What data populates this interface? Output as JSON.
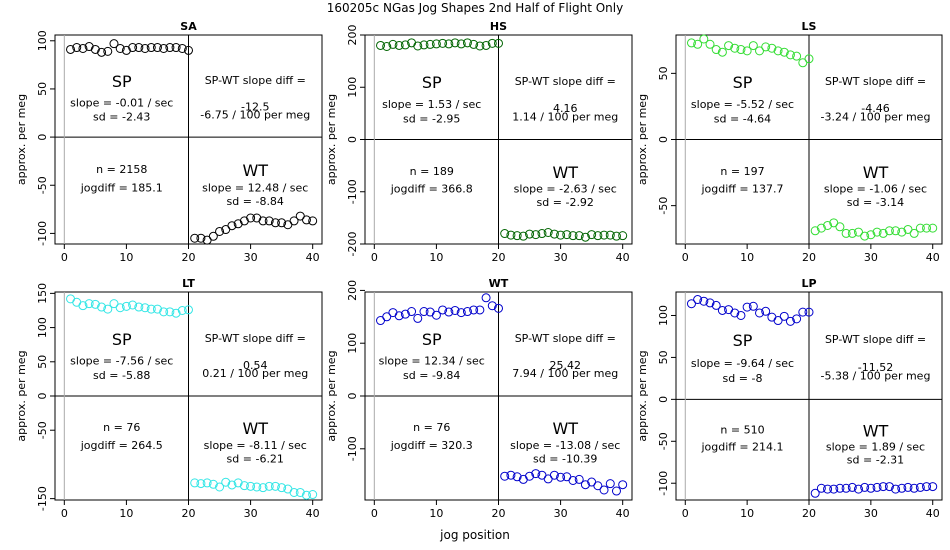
{
  "figure": {
    "title": "160205c   NGas Jog Shapes 2nd Half of Flight Only",
    "xlabel": "jog position"
  },
  "chart_data": [
    {
      "type": "scatter",
      "title": "SA",
      "ylabel": "approx. per meg",
      "xlim": [
        -1.5,
        41.5
      ],
      "ylim": [
        -111,
        106
      ],
      "xticks": [
        0,
        10,
        20,
        30,
        40
      ],
      "yticks": [
        -100,
        -50,
        0,
        50,
        100
      ],
      "color": "#000000",
      "series": [
        {
          "x": [
            1,
            2,
            3,
            4,
            5,
            6,
            7,
            8,
            9,
            10,
            11,
            12,
            13,
            14,
            15,
            16,
            17,
            18,
            19,
            20
          ],
          "y": [
            91,
            93,
            92,
            94,
            91,
            88,
            89,
            97,
            92,
            90,
            93,
            93,
            92,
            93,
            93,
            92,
            93,
            93,
            92,
            90
          ]
        },
        {
          "x": [
            21,
            22,
            23,
            24,
            25,
            26,
            27,
            28,
            29,
            30,
            31,
            32,
            33,
            34,
            35,
            36,
            37,
            38,
            39,
            40
          ],
          "y": [
            -105,
            -105,
            -107,
            -103,
            -98,
            -96,
            -92,
            -90,
            -87,
            -84,
            -84,
            -87,
            -87,
            -89,
            -89,
            -91,
            -87,
            -82,
            -86,
            -87
          ]
        }
      ],
      "annotations": {
        "sp_label": "SP",
        "sp_slope": "slope = -0.01 / sec",
        "sp_sd": "sd = -2.43",
        "diff_label": "SP-WT slope diff =",
        "diff_value": "-12.5",
        "diff_per_meg": "-6.75 / 100 per meg",
        "n": "n = 2158",
        "jogdiff": "jogdiff = 185.1",
        "wt_label": "WT",
        "wt_slope": "slope = 12.48 / sec",
        "wt_sd": "sd = -8.84"
      }
    },
    {
      "type": "scatter",
      "title": "HS",
      "ylabel": "approx. per meg",
      "xlim": [
        -1.5,
        41.5
      ],
      "ylim": [
        -200,
        200
      ],
      "xticks": [
        0,
        10,
        20,
        30,
        40
      ],
      "yticks": [
        -200,
        -100,
        0,
        100,
        200
      ],
      "color": "#006400",
      "series": [
        {
          "x": [
            1,
            2,
            3,
            4,
            5,
            6,
            7,
            8,
            9,
            10,
            11,
            12,
            13,
            14,
            15,
            16,
            17,
            18,
            19,
            20
          ],
          "y": [
            180,
            178,
            182,
            180,
            181,
            185,
            179,
            181,
            182,
            183,
            184,
            183,
            185,
            183,
            185,
            182,
            179,
            180,
            184,
            184
          ]
        },
        {
          "x": [
            21,
            22,
            23,
            24,
            25,
            26,
            27,
            28,
            29,
            30,
            31,
            32,
            33,
            34,
            35,
            36,
            37,
            38,
            39,
            40
          ],
          "y": [
            -180,
            -183,
            -184,
            -185,
            -181,
            -182,
            -180,
            -178,
            -181,
            -183,
            -182,
            -184,
            -184,
            -187,
            -182,
            -184,
            -183,
            -183,
            -185,
            -184
          ]
        }
      ],
      "annotations": {
        "sp_label": "SP",
        "sp_slope": "slope = 1.53 / sec",
        "sp_sd": "sd = -2.95",
        "diff_label": "SP-WT slope diff =",
        "diff_value": "4.16",
        "diff_per_meg": "1.14 / 100 per meg",
        "n": "n = 189",
        "jogdiff": "jogdiff = 366.8",
        "wt_label": "WT",
        "wt_slope": "slope = -2.63 / sec",
        "wt_sd": "sd = -2.92"
      }
    },
    {
      "type": "scatter",
      "title": "LS",
      "ylabel": "approx. per meg",
      "xlim": [
        -1.5,
        41.5
      ],
      "ylim": [
        -79,
        79
      ],
      "xticks": [
        0,
        10,
        20,
        30,
        40
      ],
      "yticks": [
        -50,
        0,
        50
      ],
      "color": "#33dd33",
      "series": [
        {
          "x": [
            1,
            2,
            3,
            4,
            5,
            6,
            7,
            8,
            9,
            10,
            11,
            12,
            13,
            14,
            15,
            16,
            17,
            18,
            19,
            20
          ],
          "y": [
            73,
            72,
            76,
            72,
            68,
            66,
            71,
            69,
            68,
            67,
            71,
            67,
            70,
            69,
            67,
            66,
            64,
            63,
            58,
            61
          ]
        },
        {
          "x": [
            21,
            22,
            23,
            24,
            25,
            26,
            27,
            28,
            29,
            30,
            31,
            32,
            33,
            34,
            35,
            36,
            37,
            38,
            39,
            40
          ],
          "y": [
            -69,
            -67,
            -65,
            -63,
            -66,
            -71,
            -71,
            -70,
            -73,
            -72,
            -70,
            -71,
            -69,
            -69,
            -70,
            -68,
            -71,
            -67,
            -67,
            -67
          ]
        }
      ],
      "annotations": {
        "sp_label": "SP",
        "sp_slope": "slope = -5.52 / sec",
        "sp_sd": "sd = -4.64",
        "diff_label": "SP-WT slope diff =",
        "diff_value": "-4.46",
        "diff_per_meg": "-3.24 / 100 per meg",
        "n": "n = 197",
        "jogdiff": "jogdiff = 137.7",
        "wt_label": "WT",
        "wt_slope": "slope = -1.06 / sec",
        "wt_sd": "sd = -3.14"
      }
    },
    {
      "type": "scatter",
      "title": "LT",
      "ylabel": "approx. per meg",
      "xlim": [
        -1.5,
        41.5
      ],
      "ylim": [
        -152,
        152
      ],
      "xticks": [
        0,
        10,
        20,
        30,
        40
      ],
      "yticks": [
        -150,
        -50,
        0,
        50,
        100,
        150
      ],
      "color": "#33e6e6",
      "series": [
        {
          "x": [
            1,
            2,
            3,
            4,
            5,
            6,
            7,
            8,
            9,
            10,
            11,
            12,
            13,
            14,
            15,
            16,
            17,
            18,
            19,
            20
          ],
          "y": [
            142,
            137,
            132,
            135,
            134,
            130,
            127,
            135,
            129,
            131,
            133,
            130,
            129,
            127,
            127,
            123,
            123,
            121,
            125,
            126
          ]
        },
        {
          "x": [
            21,
            22,
            23,
            24,
            25,
            26,
            27,
            28,
            29,
            30,
            31,
            32,
            33,
            34,
            35,
            36,
            37,
            38,
            39,
            40
          ],
          "y": [
            -127,
            -128,
            -127,
            -129,
            -133,
            -126,
            -130,
            -127,
            -131,
            -132,
            -133,
            -134,
            -132,
            -132,
            -134,
            -136,
            -141,
            -141,
            -145,
            -144
          ]
        }
      ],
      "annotations": {
        "sp_label": "SP",
        "sp_slope": "slope = -7.56 / sec",
        "sp_sd": "sd = -5.88",
        "diff_label": "SP-WT slope diff =",
        "diff_value": "0.54",
        "diff_per_meg": "0.21 / 100 per meg",
        "n": "n = 76",
        "jogdiff": "jogdiff = 264.5",
        "wt_label": "WT",
        "wt_slope": "slope = -8.11 / sec",
        "wt_sd": "sd = -6.21"
      }
    },
    {
      "type": "scatter",
      "title": "WT",
      "ylabel": "approx. per meg",
      "xlim": [
        -1.5,
        41.5
      ],
      "ylim": [
        -197,
        197
      ],
      "xticks": [
        0,
        10,
        20,
        30,
        40
      ],
      "yticks": [
        -100,
        0,
        100,
        200
      ],
      "color": "#0000cc",
      "series": [
        {
          "x": [
            1,
            2,
            3,
            4,
            5,
            6,
            7,
            8,
            9,
            10,
            11,
            12,
            13,
            14,
            15,
            16,
            17,
            18,
            19,
            20
          ],
          "y": [
            143,
            150,
            158,
            152,
            155,
            160,
            147,
            160,
            159,
            153,
            163,
            159,
            162,
            158,
            160,
            163,
            163,
            186,
            171,
            166
          ]
        },
        {
          "x": [
            21,
            22,
            23,
            24,
            25,
            26,
            27,
            28,
            29,
            30,
            31,
            32,
            33,
            34,
            35,
            36,
            37,
            38,
            39,
            40
          ],
          "y": [
            -152,
            -150,
            -153,
            -158,
            -152,
            -147,
            -150,
            -157,
            -150,
            -154,
            -153,
            -160,
            -158,
            -168,
            -163,
            -170,
            -178,
            -166,
            -180,
            -168
          ]
        }
      ],
      "annotations": {
        "sp_label": "SP",
        "sp_slope": "slope = 12.34 / sec",
        "sp_sd": "sd = -9.84",
        "diff_label": "SP-WT slope diff =",
        "diff_value": "25.42",
        "diff_per_meg": "7.94 / 100 per meg",
        "n": "n = 76",
        "jogdiff": "jogdiff = 320.3",
        "wt_label": "WT",
        "wt_slope": "slope = -13.08 / sec",
        "wt_sd": "sd = -10.39"
      }
    },
    {
      "type": "scatter",
      "title": "LP",
      "ylabel": "approx. per meg",
      "xlim": [
        -1.5,
        41.5
      ],
      "ylim": [
        -120,
        128
      ],
      "xticks": [
        0,
        10,
        20,
        30,
        40
      ],
      "yticks": [
        -100,
        -50,
        0,
        50,
        100
      ],
      "color": "#0000cc",
      "series": [
        {
          "x": [
            1,
            2,
            3,
            4,
            5,
            6,
            7,
            8,
            9,
            10,
            11,
            12,
            13,
            14,
            15,
            16,
            17,
            18,
            19,
            20
          ],
          "y": [
            114,
            119,
            117,
            115,
            112,
            106,
            107,
            103,
            100,
            110,
            111,
            103,
            105,
            98,
            94,
            99,
            93,
            96,
            104,
            104
          ]
        },
        {
          "x": [
            21,
            22,
            23,
            24,
            25,
            26,
            27,
            28,
            29,
            30,
            31,
            32,
            33,
            34,
            35,
            36,
            37,
            38,
            39,
            40
          ],
          "y": [
            -112,
            -106,
            -107,
            -107,
            -106,
            -106,
            -105,
            -107,
            -105,
            -106,
            -105,
            -104,
            -104,
            -107,
            -106,
            -105,
            -106,
            -105,
            -104,
            -104
          ]
        }
      ],
      "annotations": {
        "sp_label": "SP",
        "sp_slope": "slope = -9.64 / sec",
        "sp_sd": "sd = -8",
        "diff_label": "SP-WT slope diff =",
        "diff_value": "-11.52",
        "diff_per_meg": "-5.38 / 100 per meg",
        "n": "n = 510",
        "jogdiff": "jogdiff = 214.1",
        "wt_label": "WT",
        "wt_slope": "slope = 1.89 / sec",
        "wt_sd": "sd = -2.31"
      }
    }
  ]
}
